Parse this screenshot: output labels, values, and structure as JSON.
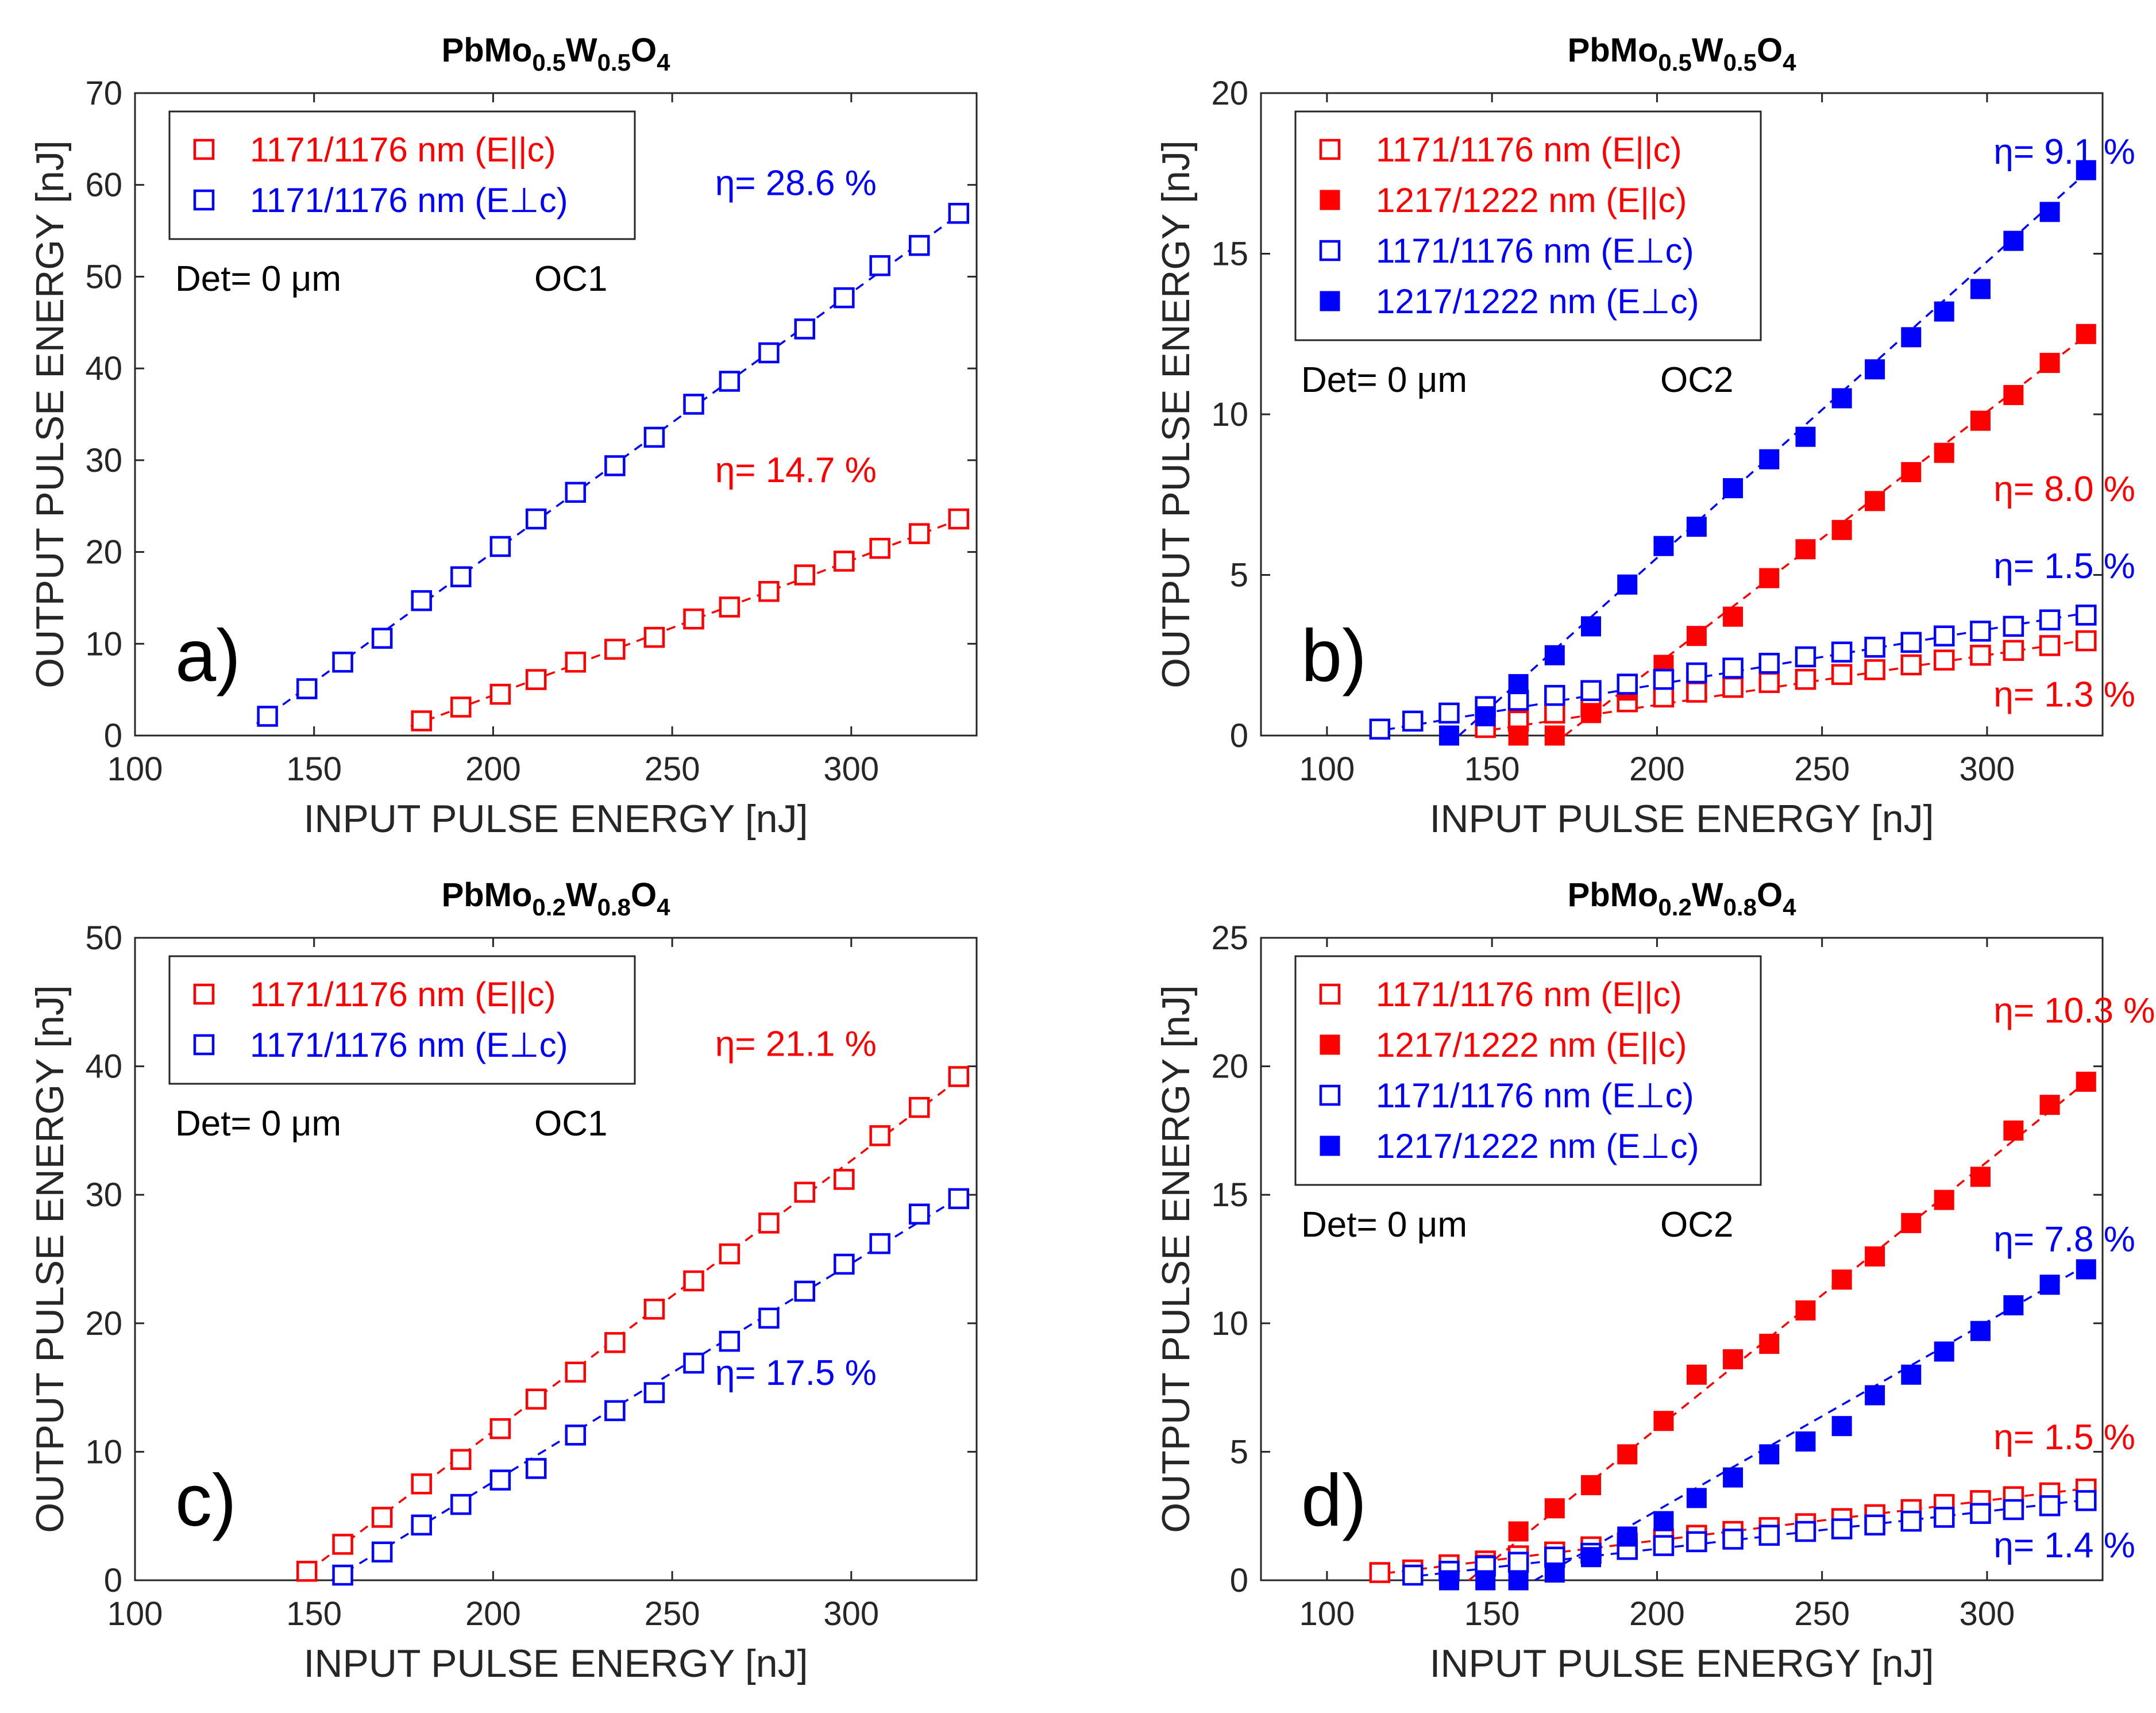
{
  "figure": {
    "colors": {
      "red": "#ff0000",
      "blue": "#0000ff",
      "axis": "#262626"
    }
  },
  "chart_data": [
    {
      "id": "a",
      "type": "scatter",
      "panel_label": "a)",
      "title_parts": [
        "PbMo",
        "0.5",
        "W",
        "0.5",
        "O",
        "4"
      ],
      "xlabel": "INPUT PULSE ENERGY [nJ]",
      "ylabel": "OUTPUT PULSE ENERGY [nJ]",
      "xlim": [
        100,
        335
      ],
      "ylim": [
        0,
        70
      ],
      "xticks": [
        100,
        150,
        200,
        250,
        300
      ],
      "yticks": [
        0,
        10,
        20,
        30,
        40,
        50,
        60,
        70
      ],
      "info_left": "Det= 0 μm",
      "info_right": "OC1",
      "series": [
        {
          "name": "1171/1176 nm (E||c)",
          "color": "red",
          "marker": "open-square",
          "x": [
            180,
            191,
            202,
            212,
            223,
            234,
            245,
            256,
            266,
            277,
            287,
            298,
            308,
            319,
            330
          ],
          "y": [
            1.6,
            3.1,
            4.5,
            6.1,
            8.0,
            9.4,
            10.7,
            12.7,
            14.0,
            15.7,
            17.5,
            19.0,
            20.4,
            22.0,
            23.6
          ]
        },
        {
          "name": "1171/1176 nm (E⊥c)",
          "color": "blue",
          "marker": "open-square",
          "x": [
            137,
            148,
            158,
            169,
            180,
            191,
            202,
            212,
            223,
            234,
            245,
            256,
            266,
            277,
            287,
            298,
            308,
            319,
            330
          ],
          "y": [
            2.1,
            5.1,
            8.0,
            10.6,
            14.7,
            17.3,
            20.6,
            23.6,
            26.5,
            29.4,
            32.5,
            36.1,
            38.6,
            41.7,
            44.3,
            47.7,
            51.2,
            53.4,
            56.9
          ]
        }
      ],
      "annotations": [
        {
          "text": "η= 28.6 %",
          "color": "blue",
          "x": 262,
          "y": 58.9
        },
        {
          "text": "η= 14.7 %",
          "color": "red",
          "x": 262,
          "y": 27.6
        }
      ],
      "fits": [
        {
          "color": "red",
          "x": [
            177,
            332
          ],
          "y": [
            1.0,
            23.8
          ]
        },
        {
          "color": "blue",
          "x": [
            134,
            332
          ],
          "y": [
            1.3,
            57.3
          ]
        }
      ]
    },
    {
      "id": "b",
      "type": "scatter",
      "panel_label": "b)",
      "title_parts": [
        "PbMo",
        "0.5",
        "W",
        "0.5",
        "O",
        "4"
      ],
      "xlabel": "INPUT PULSE ENERGY  [nJ]",
      "ylabel": "OUTPUT PULSE ENERGY [nJ]",
      "xlim": [
        80,
        335
      ],
      "ylim": [
        0,
        20
      ],
      "xticks": [
        100,
        150,
        200,
        250,
        300
      ],
      "yticks": [
        0,
        5,
        10,
        15,
        20
      ],
      "info_left": "Det= 0 μm",
      "info_right": "OC2",
      "series": [
        {
          "name": "1171/1176 nm (E||c)",
          "color": "red",
          "marker": "open-square",
          "x": [
            148,
            158,
            169,
            180,
            191,
            202,
            212,
            223,
            234,
            245,
            256,
            266,
            277,
            287,
            298,
            308,
            319,
            330
          ],
          "y": [
            0.25,
            0.45,
            0.7,
            0.9,
            1.05,
            1.2,
            1.35,
            1.5,
            1.65,
            1.75,
            1.9,
            2.05,
            2.2,
            2.35,
            2.5,
            2.65,
            2.8,
            2.95
          ]
        },
        {
          "name": "1217/1222 nm (E||c)",
          "color": "red",
          "marker": "filled-square",
          "x": [
            158,
            169,
            180,
            191,
            202,
            212,
            223,
            234,
            245,
            256,
            266,
            277,
            287,
            298,
            308,
            319,
            330
          ],
          "y": [
            0.0,
            0.0,
            0.7,
            1.4,
            2.2,
            3.1,
            3.7,
            4.9,
            5.8,
            6.4,
            7.3,
            8.2,
            8.8,
            9.8,
            10.6,
            11.6,
            12.5
          ]
        },
        {
          "name": "1171/1176 nm (E⊥c)",
          "color": "blue",
          "marker": "open-square",
          "x": [
            116,
            126,
            137,
            148,
            158,
            169,
            180,
            191,
            202,
            212,
            223,
            234,
            245,
            256,
            266,
            277,
            287,
            298,
            308,
            319,
            330
          ],
          "y": [
            0.2,
            0.45,
            0.7,
            0.9,
            1.1,
            1.25,
            1.4,
            1.6,
            1.75,
            1.95,
            2.1,
            2.25,
            2.45,
            2.6,
            2.75,
            2.9,
            3.1,
            3.25,
            3.4,
            3.6,
            3.75
          ]
        },
        {
          "name": "1217/1222 nm (E⊥c)",
          "color": "blue",
          "marker": "filled-square",
          "x": [
            137,
            148,
            158,
            169,
            180,
            191,
            202,
            212,
            223,
            234,
            245,
            256,
            266,
            277,
            287,
            298,
            308,
            319,
            330
          ],
          "y": [
            0.0,
            0.6,
            1.6,
            2.5,
            3.4,
            4.7,
            5.9,
            6.5,
            7.7,
            8.6,
            9.3,
            10.5,
            11.4,
            12.4,
            13.2,
            13.9,
            15.4,
            16.3,
            17.6
          ]
        }
      ],
      "annotations": [
        {
          "text": "η= 9.1 %",
          "color": "blue",
          "x": 302,
          "y": 17.8
        },
        {
          "text": "η= 8.0 %",
          "color": "red",
          "x": 302,
          "y": 7.3
        },
        {
          "text": "η= 1.5 %",
          "color": "blue",
          "x": 302,
          "y": 4.9
        },
        {
          "text": "η= 1.3 %",
          "color": "red",
          "x": 302,
          "y": 0.9
        }
      ],
      "fits": [
        {
          "color": "red",
          "x": [
            145,
            332
          ],
          "y": [
            0.1,
            3.0
          ]
        },
        {
          "color": "red",
          "x": [
            172,
            332
          ],
          "y": [
            0.0,
            12.6
          ]
        },
        {
          "color": "blue",
          "x": [
            113,
            332
          ],
          "y": [
            0.1,
            3.85
          ]
        },
        {
          "color": "blue",
          "x": [
            140,
            332
          ],
          "y": [
            0.0,
            17.7
          ]
        }
      ]
    },
    {
      "id": "c",
      "type": "scatter",
      "panel_label": "c)",
      "title_parts": [
        "PbMo",
        "0.2",
        "W",
        "0.8",
        "O",
        "4"
      ],
      "xlabel": "INPUT PULSE ENERGY [nJ]",
      "ylabel": "OUTPUT PULSE ENERGY [nJ]",
      "xlim": [
        100,
        335
      ],
      "ylim": [
        0,
        50
      ],
      "xticks": [
        100,
        150,
        200,
        250,
        300
      ],
      "yticks": [
        0,
        10,
        20,
        30,
        40,
        50
      ],
      "info_left": "Det= 0 μm",
      "info_right": "OC1",
      "series": [
        {
          "name": "1171/1176 nm (E||c)",
          "color": "red",
          "marker": "open-square",
          "x": [
            148,
            158,
            169,
            180,
            191,
            202,
            212,
            223,
            234,
            245,
            256,
            266,
            277,
            287,
            298,
            308,
            319,
            330
          ],
          "y": [
            0.7,
            2.8,
            4.9,
            7.5,
            9.4,
            11.8,
            14.1,
            16.2,
            18.5,
            21.1,
            23.3,
            25.4,
            27.8,
            30.2,
            31.2,
            34.6,
            36.8,
            39.2
          ]
        },
        {
          "name": "1171/1176 nm (E⊥c)",
          "color": "blue",
          "marker": "open-square",
          "x": [
            158,
            169,
            180,
            191,
            202,
            212,
            223,
            234,
            245,
            256,
            266,
            277,
            287,
            298,
            308,
            319,
            330
          ],
          "y": [
            0.4,
            2.2,
            4.3,
            5.9,
            7.8,
            8.7,
            11.3,
            13.2,
            14.6,
            16.9,
            18.6,
            20.4,
            22.5,
            24.6,
            26.2,
            28.5,
            29.7
          ]
        }
      ],
      "annotations": [
        {
          "text": "η= 21.1 %",
          "color": "red",
          "x": 262,
          "y": 40.8
        },
        {
          "text": "η= 17.5 %",
          "color": "blue",
          "x": 262,
          "y": 15.2
        }
      ],
      "fits": [
        {
          "color": "red",
          "x": [
            145,
            332
          ],
          "y": [
            0.0,
            39.4
          ]
        },
        {
          "color": "blue",
          "x": [
            155,
            332
          ],
          "y": [
            0.0,
            30.1
          ]
        }
      ]
    },
    {
      "id": "d",
      "type": "scatter",
      "panel_label": "d)",
      "title_parts": [
        "PbMo",
        "0.2",
        "W",
        "0.8",
        "O",
        "4"
      ],
      "xlabel": "INPUT PULSE ENERGY  [nJ]",
      "ylabel": "OUTPUT PULSE ENERGY [nJ]",
      "xlim": [
        80,
        335
      ],
      "ylim": [
        0,
        25
      ],
      "xticks": [
        100,
        150,
        200,
        250,
        300
      ],
      "yticks": [
        0,
        5,
        10,
        15,
        20,
        25
      ],
      "info_left": "Det= 0 μm",
      "info_right": "OC2",
      "series": [
        {
          "name": "1171/1176 nm (E||c)",
          "color": "red",
          "marker": "open-square",
          "x": [
            116,
            126,
            137,
            148,
            158,
            169,
            180,
            191,
            202,
            212,
            223,
            234,
            245,
            256,
            266,
            277,
            287,
            298,
            308,
            319,
            330
          ],
          "y": [
            0.3,
            0.4,
            0.6,
            0.75,
            0.95,
            1.1,
            1.3,
            1.45,
            1.6,
            1.75,
            1.9,
            2.05,
            2.2,
            2.4,
            2.55,
            2.75,
            2.95,
            3.1,
            3.25,
            3.4,
            3.55
          ]
        },
        {
          "name": "1217/1222 nm (E||c)",
          "color": "red",
          "marker": "filled-square",
          "x": [
            148,
            158,
            169,
            180,
            191,
            202,
            212,
            223,
            234,
            245,
            256,
            266,
            277,
            287,
            298,
            308,
            319,
            330
          ],
          "y": [
            0.6,
            1.9,
            2.8,
            3.7,
            4.9,
            6.2,
            8.0,
            8.6,
            9.2,
            10.5,
            11.7,
            12.6,
            13.9,
            14.8,
            15.7,
            17.5,
            18.5,
            19.4
          ]
        },
        {
          "name": "1171/1176 nm (E⊥c)",
          "color": "blue",
          "marker": "open-square",
          "x": [
            126,
            137,
            148,
            158,
            169,
            180,
            191,
            202,
            212,
            223,
            234,
            245,
            256,
            266,
            277,
            287,
            298,
            308,
            319,
            330
          ],
          "y": [
            0.2,
            0.35,
            0.55,
            0.7,
            0.9,
            1.05,
            1.2,
            1.35,
            1.5,
            1.6,
            1.75,
            1.9,
            2.0,
            2.15,
            2.3,
            2.45,
            2.6,
            2.75,
            2.9,
            3.1
          ]
        },
        {
          "name": "1217/1222 nm (E⊥c)",
          "color": "blue",
          "marker": "filled-square",
          "x": [
            137,
            148,
            158,
            169,
            180,
            191,
            202,
            212,
            223,
            234,
            245,
            256,
            266,
            277,
            287,
            298,
            308,
            319,
            330
          ],
          "y": [
            0.0,
            0.0,
            0.0,
            0.3,
            0.9,
            1.7,
            2.3,
            3.2,
            4.0,
            4.9,
            5.4,
            6.0,
            7.2,
            8.0,
            8.9,
            9.7,
            10.7,
            11.5,
            12.1
          ]
        }
      ],
      "annotations": [
        {
          "text": "η= 10.3 %",
          "color": "red",
          "x": 302,
          "y": 21.7
        },
        {
          "text": "η= 7.8 %",
          "color": "blue",
          "x": 302,
          "y": 12.8
        },
        {
          "text": "η= 1.5 %",
          "color": "red",
          "x": 302,
          "y": 5.1
        },
        {
          "text": "η= 1.4 %",
          "color": "blue",
          "x": 302,
          "y": 0.9
        }
      ],
      "fits": [
        {
          "color": "red",
          "x": [
            113,
            332
          ],
          "y": [
            0.2,
            3.6
          ]
        },
        {
          "color": "red",
          "x": [
            143,
            332
          ],
          "y": [
            0.0,
            19.6
          ]
        },
        {
          "color": "blue",
          "x": [
            123,
            332
          ],
          "y": [
            0.1,
            3.15
          ]
        },
        {
          "color": "blue",
          "x": [
            163,
            332
          ],
          "y": [
            0.0,
            12.4
          ]
        }
      ]
    }
  ]
}
